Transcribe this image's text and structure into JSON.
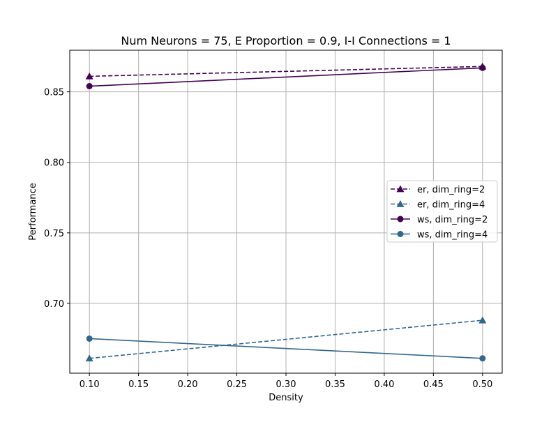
{
  "chart_data": {
    "type": "line",
    "title": "Num Neurons = 75, E Proportion = 0.9, I-I Connections = 1",
    "xlabel": "Density",
    "ylabel": "Performance",
    "xlim": [
      0.08,
      0.52
    ],
    "ylim": [
      0.6505,
      0.8795
    ],
    "xticks": [
      0.1,
      0.15,
      0.2,
      0.25,
      0.3,
      0.35,
      0.4,
      0.45,
      0.5
    ],
    "xtick_labels": [
      "0.10",
      "0.15",
      "0.20",
      "0.25",
      "0.30",
      "0.35",
      "0.40",
      "0.45",
      "0.50"
    ],
    "yticks": [
      0.7,
      0.75,
      0.8,
      0.85
    ],
    "ytick_labels": [
      "0.70",
      "0.75",
      "0.80",
      "0.85"
    ],
    "grid": true,
    "legend_position": "center-right",
    "series": [
      {
        "name": "er, dim_ring=2",
        "x": [
          0.1,
          0.5
        ],
        "y": [
          0.861,
          0.868
        ],
        "color": "#440154",
        "linestyle": "dashed",
        "marker": "triangle"
      },
      {
        "name": "er, dim_ring=4",
        "x": [
          0.1,
          0.5
        ],
        "y": [
          0.661,
          0.688
        ],
        "color": "#31688e",
        "linestyle": "dashed",
        "marker": "triangle"
      },
      {
        "name": "ws, dim_ring=2",
        "x": [
          0.1,
          0.5
        ],
        "y": [
          0.854,
          0.867
        ],
        "color": "#440154",
        "linestyle": "solid",
        "marker": "circle"
      },
      {
        "name": "ws, dim_ring=4",
        "x": [
          0.1,
          0.5
        ],
        "y": [
          0.675,
          0.661
        ],
        "color": "#31688e",
        "linestyle": "solid",
        "marker": "circle"
      }
    ]
  }
}
